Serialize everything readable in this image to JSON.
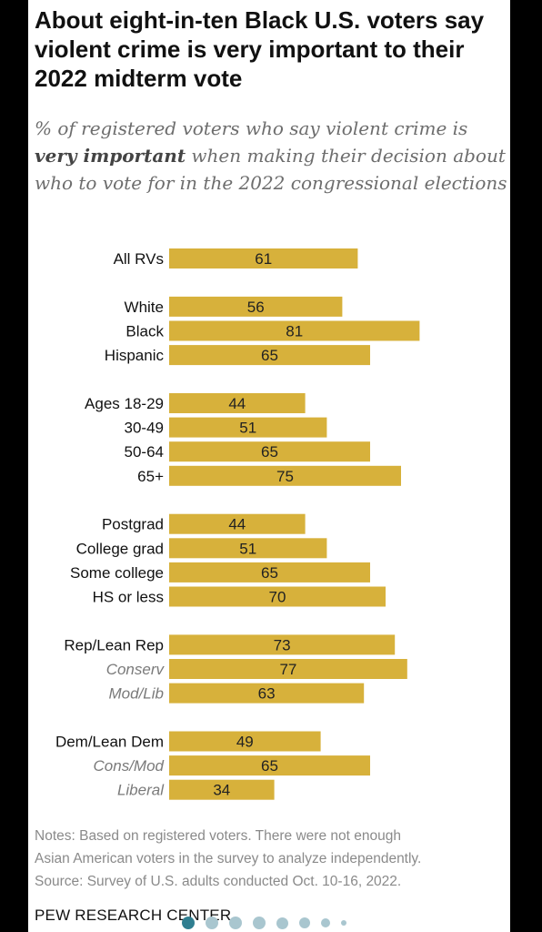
{
  "title": "About eight-in-ten Black U.S. voters say violent crime is very important to their 2022 midterm vote",
  "subtitle": {
    "before": "% of registered voters who say violent crime is ",
    "emphasis": "very important",
    "after": " when making their decision about who to vote for in the 2022 congressional elections"
  },
  "colors": {
    "bar": "#d7b13b",
    "label": "#111111",
    "sub_label": "#7a7a7a"
  },
  "chart_data": {
    "type": "bar",
    "orientation": "horizontal",
    "xlim": [
      0,
      100
    ],
    "categories": [
      "All RVs",
      "White",
      "Black",
      "Hispanic",
      "Ages 18-29",
      "30-49",
      "50-64",
      "65+",
      "Postgrad",
      "College grad",
      "Some college",
      "HS or less",
      "Rep/Lean Rep",
      "Conserv",
      "Mod/Lib",
      "Dem/Lean Dem",
      "Cons/Mod",
      "Liberal"
    ],
    "values": [
      61,
      56,
      81,
      65,
      44,
      51,
      65,
      75,
      44,
      51,
      65,
      70,
      73,
      77,
      63,
      49,
      65,
      34
    ],
    "italic_categories": [
      "Conserv",
      "Mod/Lib",
      "Cons/Mod",
      "Liberal"
    ],
    "groups": [
      [
        "All RVs"
      ],
      [
        "White",
        "Black",
        "Hispanic"
      ],
      [
        "Ages 18-29",
        "30-49",
        "50-64",
        "65+"
      ],
      [
        "Postgrad",
        "College grad",
        "Some college",
        "HS or less"
      ],
      [
        "Rep/Lean Rep",
        "Conserv",
        "Mod/Lib"
      ],
      [
        "Dem/Lean Dem",
        "Cons/Mod",
        "Liberal"
      ]
    ],
    "grid": false,
    "legend": "none"
  },
  "notes": [
    "Notes: Based on registered voters. There were not enough",
    "Asian American voters in the survey to analyze independently.",
    "Source: Survey of U.S. adults conducted Oct. 10-16, 2022."
  ],
  "footer": "PEW RESEARCH CENTER",
  "pagination": {
    "count": 8,
    "active": 0
  }
}
